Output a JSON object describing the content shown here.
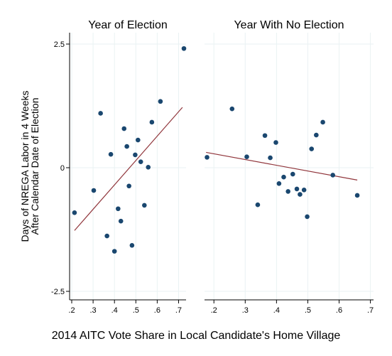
{
  "chart_data": {
    "type": "scatter",
    "ylabel_line1": "Days of NREGA Labor in 4 Weeks",
    "ylabel_line2": "After Calendar Date of Election",
    "xlabel": "2014 AITC Vote Share in Local Candidate's Home Village",
    "ylim": [
      -2.5,
      2.5
    ],
    "yticks": [
      -2.5,
      0,
      2.5
    ],
    "ytick_labels": [
      "-2.5",
      "0",
      "2.5"
    ],
    "xticks": [
      0.2,
      0.3,
      0.4,
      0.5,
      0.6,
      0.7
    ],
    "xtick_labels": [
      ".2",
      ".3",
      ".4",
      ".5",
      ".6",
      ".7"
    ],
    "grid": true,
    "colors": {
      "marker": "#1a476f",
      "fit_line": "#90353b",
      "grid": "#eaf2f3",
      "axis": "#000000"
    },
    "panels": [
      {
        "title": "Year of Election",
        "xlim": [
          0.19,
          0.735
        ],
        "points": [
          {
            "x": 0.213,
            "y": -0.91
          },
          {
            "x": 0.303,
            "y": -0.46
          },
          {
            "x": 0.335,
            "y": 1.1
          },
          {
            "x": 0.365,
            "y": -1.38
          },
          {
            "x": 0.383,
            "y": 0.27
          },
          {
            "x": 0.4,
            "y": -1.69
          },
          {
            "x": 0.417,
            "y": -0.83
          },
          {
            "x": 0.43,
            "y": -1.08
          },
          {
            "x": 0.445,
            "y": 0.79
          },
          {
            "x": 0.458,
            "y": 0.43
          },
          {
            "x": 0.468,
            "y": -0.37
          },
          {
            "x": 0.482,
            "y": -1.57
          },
          {
            "x": 0.497,
            "y": 0.26
          },
          {
            "x": 0.51,
            "y": 0.56
          },
          {
            "x": 0.523,
            "y": 0.12
          },
          {
            "x": 0.54,
            "y": -0.76
          },
          {
            "x": 0.558,
            "y": 0.01
          },
          {
            "x": 0.575,
            "y": 0.92
          },
          {
            "x": 0.615,
            "y": 1.34
          },
          {
            "x": 0.725,
            "y": 2.41
          }
        ],
        "fit": {
          "x": [
            0.213,
            0.718
          ],
          "y": [
            -1.27,
            1.22
          ]
        }
      },
      {
        "title": "Year With No Election",
        "xlim": [
          0.17,
          0.71
        ],
        "points": [
          {
            "x": 0.178,
            "y": 0.21
          },
          {
            "x": 0.258,
            "y": 1.19
          },
          {
            "x": 0.305,
            "y": 0.22
          },
          {
            "x": 0.34,
            "y": -0.75
          },
          {
            "x": 0.363,
            "y": 0.65
          },
          {
            "x": 0.38,
            "y": 0.2
          },
          {
            "x": 0.398,
            "y": 0.51
          },
          {
            "x": 0.408,
            "y": -0.32
          },
          {
            "x": 0.423,
            "y": -0.19
          },
          {
            "x": 0.437,
            "y": -0.48
          },
          {
            "x": 0.452,
            "y": -0.13
          },
          {
            "x": 0.465,
            "y": -0.43
          },
          {
            "x": 0.475,
            "y": -0.54
          },
          {
            "x": 0.488,
            "y": -0.45
          },
          {
            "x": 0.498,
            "y": -0.99
          },
          {
            "x": 0.512,
            "y": 0.38
          },
          {
            "x": 0.527,
            "y": 0.66
          },
          {
            "x": 0.548,
            "y": 0.92
          },
          {
            "x": 0.58,
            "y": -0.15
          },
          {
            "x": 0.658,
            "y": -0.56
          }
        ],
        "fit": {
          "x": [
            0.175,
            0.658
          ],
          "y": [
            0.31,
            -0.25
          ]
        }
      }
    ]
  }
}
